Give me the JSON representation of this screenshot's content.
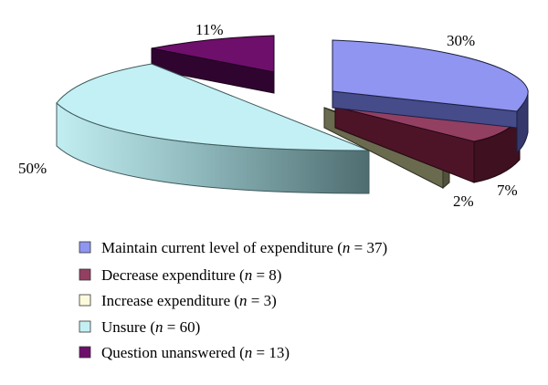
{
  "chart_data": {
    "type": "pie",
    "style": "3d-exploded",
    "legend_position": "bottom",
    "title": "",
    "slices": [
      {
        "label": "Maintain current level of expenditure",
        "n": 37,
        "value": 30,
        "value_label": "30%",
        "color": "#8f95f0"
      },
      {
        "label": "Decrease expenditure",
        "n": 8,
        "value": 7,
        "value_label": "7%",
        "color": "#933f62"
      },
      {
        "label": "Increase expenditure",
        "n": 3,
        "value": 2,
        "value_label": "2%",
        "color": "#fdfadc"
      },
      {
        "label": "Unsure",
        "n": 60,
        "value": 50,
        "value_label": "50%",
        "color": "#c3f0f4"
      },
      {
        "label": "Question unanswered",
        "n": 13,
        "value": 11,
        "value_label": "11%",
        "color": "#6e0f6c"
      }
    ]
  }
}
